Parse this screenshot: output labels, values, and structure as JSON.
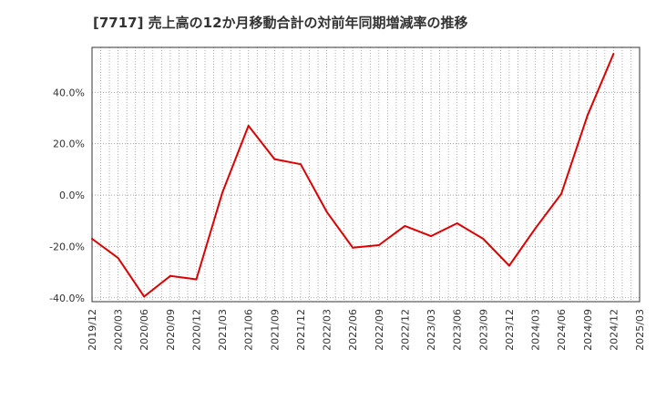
{
  "chart_data": {
    "type": "line",
    "title": "[7717]  売上高の12か月移動合計の対前年同期増減率の推移",
    "xlabel": "",
    "ylabel": "",
    "x_tick_labels": [
      "2019/12",
      "2020/03",
      "2020/06",
      "2020/09",
      "2020/12",
      "2021/03",
      "2021/06",
      "2021/09",
      "2021/12",
      "2022/03",
      "2022/06",
      "2022/09",
      "2022/12",
      "2023/03",
      "2023/06",
      "2023/09",
      "2023/12",
      "2024/03",
      "2024/06",
      "2024/09",
      "2024/12",
      "2025/03"
    ],
    "y_tick_labels": [
      "40.0%",
      "20.0%",
      "0.0%",
      "-20.0%",
      "-40.0%"
    ],
    "y_ticks": [
      40,
      20,
      0,
      -20,
      -40
    ],
    "ylim": [
      -41.5,
      57.5
    ],
    "grid": true,
    "line_color": "#dd0000",
    "series": [
      {
        "x": [
          "2019/12",
          "2020/03",
          "2020/06",
          "2020/09",
          "2020/12",
          "2021/03",
          "2021/06",
          "2021/09",
          "2021/12",
          "2022/03",
          "2022/06",
          "2022/09",
          "2022/12",
          "2023/03",
          "2023/06",
          "2023/09",
          "2023/12",
          "2024/03",
          "2024/06",
          "2024/09",
          "2024/12"
        ],
        "values": [
          -17.0,
          -24.5,
          -39.5,
          -31.5,
          -32.8,
          1.0,
          27.0,
          14.0,
          12.0,
          -6.5,
          -20.5,
          -19.5,
          -12.0,
          -16.0,
          -11.0,
          -17.0,
          -27.5,
          -13.0,
          0.5,
          31.0,
          55.0
        ]
      }
    ]
  }
}
